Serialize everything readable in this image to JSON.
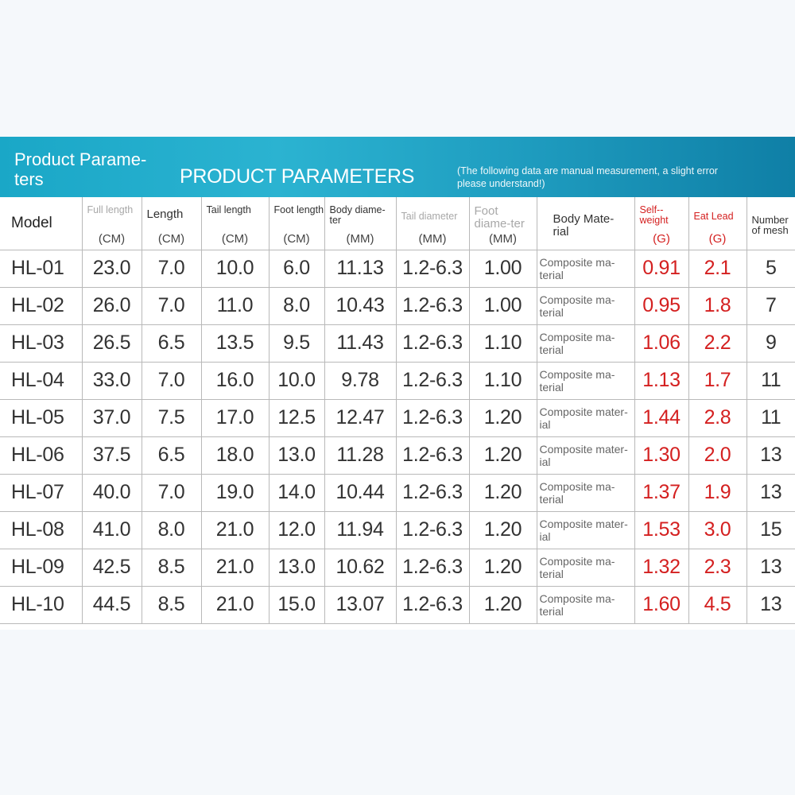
{
  "banner": {
    "title_line1": "Product Parame-",
    "title_line2": "ters",
    "main_title": "PRODUCT PARAMETERS",
    "note_line1": "(The following data are manual measurement, a slight error",
    "note_line2": "please understand!)"
  },
  "columns": [
    {
      "label": "Model",
      "unit": ""
    },
    {
      "label": "Full length",
      "unit": "(CM)"
    },
    {
      "label": "Length",
      "unit": "(CM)"
    },
    {
      "label": "Tail length",
      "unit": "(CM)"
    },
    {
      "label": "Foot length",
      "unit": "(CM)"
    },
    {
      "label": "Body diame-ter",
      "unit": "(MM)"
    },
    {
      "label": "Tail diameter",
      "unit": "(MM)"
    },
    {
      "label": "Foot diame-ter",
      "unit": "(MM)"
    },
    {
      "label": "Body Mate-rial",
      "unit": ""
    },
    {
      "label": "Self--weight",
      "unit": "(G)"
    },
    {
      "label": "Eat Lead",
      "unit": "(G)"
    },
    {
      "label": "Number of mesh",
      "unit": ""
    }
  ],
  "rows": [
    [
      "HL-01",
      "23.0",
      "7.0",
      "10.0",
      "6.0",
      "11.13",
      "1.2-6.3",
      "1.00",
      "Composite ma-terial",
      "0.91",
      "2.1",
      "5"
    ],
    [
      "HL-02",
      "26.0",
      "7.0",
      "11.0",
      "8.0",
      "10.43",
      "1.2-6.3",
      "1.00",
      "Composite ma-terial",
      "0.95",
      "1.8",
      "7"
    ],
    [
      "HL-03",
      "26.5",
      "6.5",
      "13.5",
      "9.5",
      "11.43",
      "1.2-6.3",
      "1.10",
      "Composite ma-terial",
      "1.06",
      "2.2",
      "9"
    ],
    [
      "HL-04",
      "33.0",
      "7.0",
      "16.0",
      "10.0",
      "9.78",
      "1.2-6.3",
      "1.10",
      "Composite ma-terial",
      "1.13",
      "1.7",
      "11"
    ],
    [
      "HL-05",
      "37.0",
      "7.5",
      "17.0",
      "12.5",
      "12.47",
      "1.2-6.3",
      "1.20",
      "Composite mater-ial",
      "1.44",
      "2.8",
      "11"
    ],
    [
      "HL-06",
      "37.5",
      "6.5",
      "18.0",
      "13.0",
      "11.28",
      "1.2-6.3",
      "1.20",
      "Composite mater-ial",
      "1.30",
      "2.0",
      "13"
    ],
    [
      "HL-07",
      "40.0",
      "7.0",
      "19.0",
      "14.0",
      "10.44",
      "1.2-6.3",
      "1.20",
      "Composite ma-terial",
      "1.37",
      "1.9",
      "13"
    ],
    [
      "HL-08",
      "41.0",
      "8.0",
      "21.0",
      "12.0",
      "11.94",
      "1.2-6.3",
      "1.20",
      "Composite mater-ial",
      "1.53",
      "3.0",
      "15"
    ],
    [
      "HL-09",
      "42.5",
      "8.5",
      "21.0",
      "13.0",
      "10.62",
      "1.2-6.3",
      "1.20",
      "Composite ma-terial",
      "1.32",
      "2.3",
      "13"
    ],
    [
      "HL-10",
      "44.5",
      "8.5",
      "21.0",
      "15.0",
      "13.07",
      "1.2-6.3",
      "1.20",
      "Composite ma-terial",
      "1.60",
      "4.5",
      "13"
    ]
  ],
  "colors": {
    "banner_start": "#1aa7c7",
    "banner_end": "#0f7fa6",
    "highlight_red": "#d42020",
    "grid_line": "#b9b9b9"
  }
}
